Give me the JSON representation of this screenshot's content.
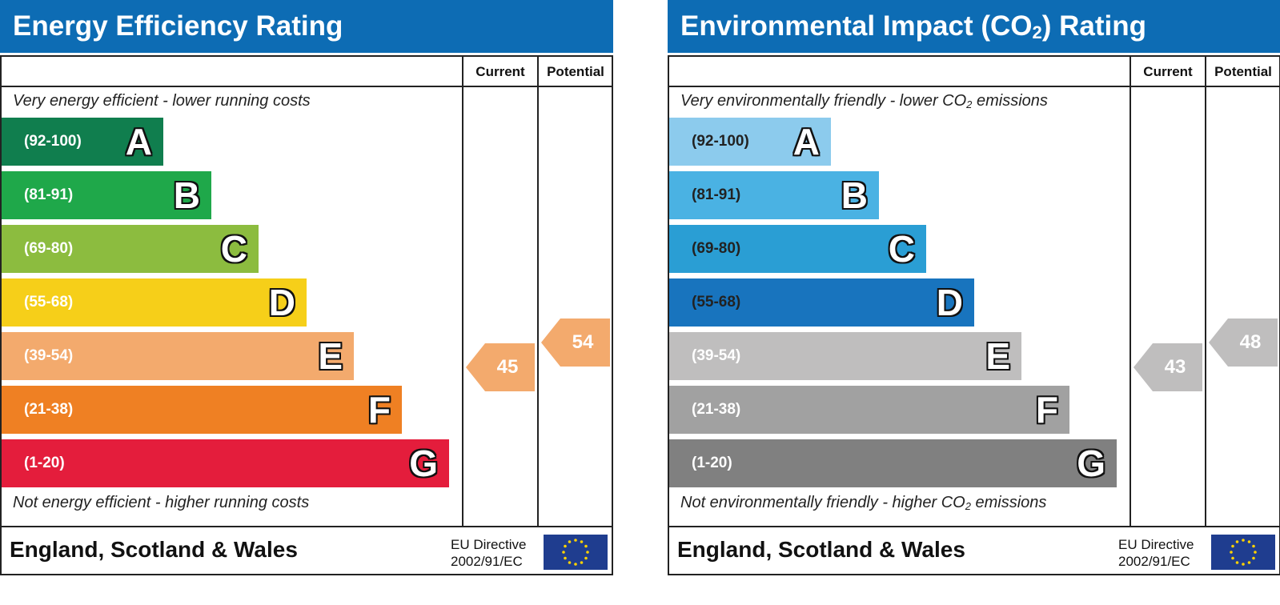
{
  "chart_data": [
    {
      "type": "bar",
      "title": "Energy Efficiency Rating",
      "columns": [
        "Current",
        "Potential"
      ],
      "top_note": "Very energy efficient - lower running costs",
      "bottom_note": "Not energy efficient - higher running costs",
      "bands": [
        {
          "range": "(92-100)",
          "letter": "A",
          "color": "#107e4e"
        },
        {
          "range": "(81-91)",
          "letter": "B",
          "color": "#1fa84a"
        },
        {
          "range": "(69-80)",
          "letter": "C",
          "color": "#8cbc3f"
        },
        {
          "range": "(55-68)",
          "letter": "D",
          "color": "#f6cf19"
        },
        {
          "range": "(39-54)",
          "letter": "E",
          "color": "#f3aa6d"
        },
        {
          "range": "(21-38)",
          "letter": "F",
          "color": "#ef8023"
        },
        {
          "range": "(1-20)",
          "letter": "G",
          "color": "#e41d3c"
        }
      ],
      "current": {
        "value": "45",
        "band": "E",
        "color": "#f3aa6d"
      },
      "potential": {
        "value": "54",
        "band": "E",
        "color": "#f3aa6d"
      },
      "region": "England, Scotland & Wales",
      "directive_line1": "EU Directive",
      "directive_line2": "2002/91/EC"
    },
    {
      "type": "bar",
      "title": "Environmental Impact (CO",
      "title_sub": "2",
      "title_end": ") Rating",
      "columns": [
        "Current",
        "Potential"
      ],
      "top_note": "Very environmentally friendly - lower CO",
      "top_note_sub": "2",
      "top_note_end": " emissions",
      "bottom_note": "Not environmentally friendly - higher CO",
      "bottom_note_sub": "2",
      "bottom_note_end": " emissions",
      "bands": [
        {
          "range": "(92-100)",
          "letter": "A",
          "color": "#8ccbed"
        },
        {
          "range": "(81-91)",
          "letter": "B",
          "color": "#4ab2e3"
        },
        {
          "range": "(69-80)",
          "letter": "C",
          "color": "#2a9ed4"
        },
        {
          "range": "(55-68)",
          "letter": "D",
          "color": "#1874be"
        },
        {
          "range": "(39-54)",
          "letter": "E",
          "color": "#bfbebe"
        },
        {
          "range": "(21-38)",
          "letter": "F",
          "color": "#a1a1a1"
        },
        {
          "range": "(1-20)",
          "letter": "G",
          "color": "#808080"
        }
      ],
      "current": {
        "value": "43",
        "band": "E",
        "color": "#bfbebe"
      },
      "potential": {
        "value": "48",
        "band": "E",
        "color": "#bfbebe"
      },
      "region": "England, Scotland & Wales",
      "directive_line1": "EU Directive",
      "directive_line2": "2002/91/EC"
    }
  ]
}
